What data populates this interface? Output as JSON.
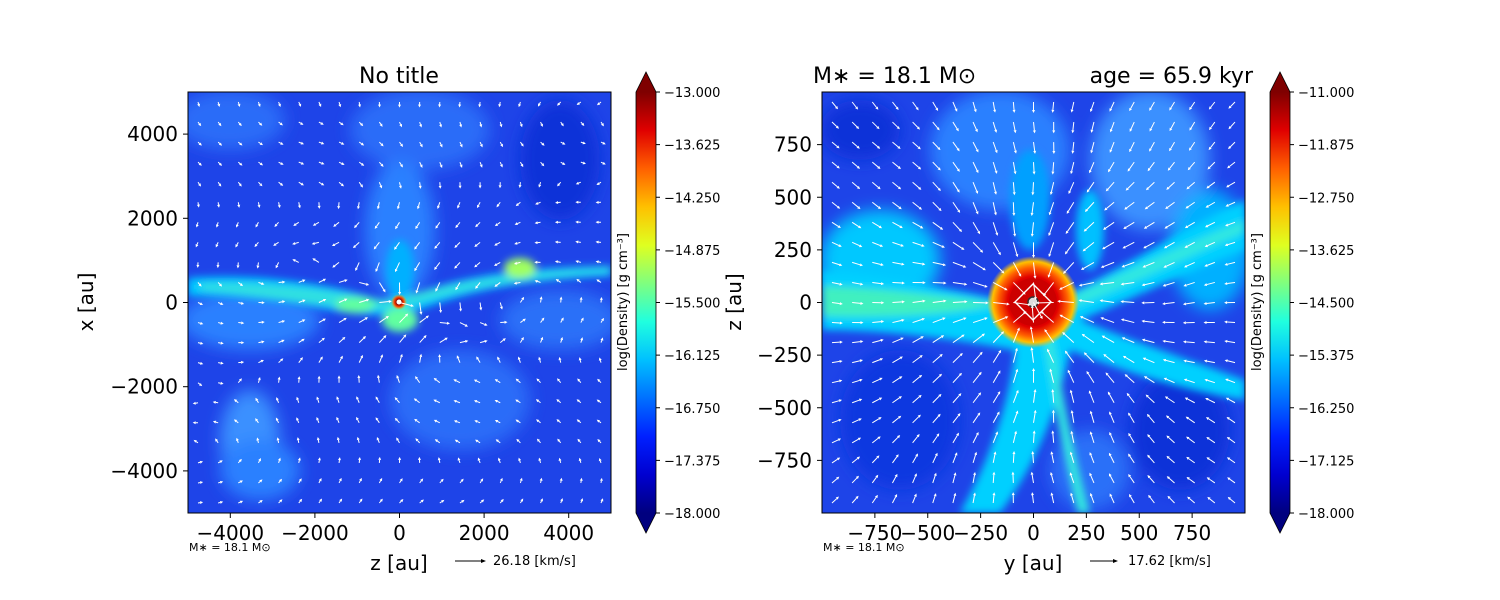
{
  "colors": {
    "jet_stops": [
      "#00007f",
      "#0000d0",
      "#0020ff",
      "#0070ff",
      "#00c0ff",
      "#20ffdf",
      "#7fff7f",
      "#dfff20",
      "#ffc000",
      "#ff6000",
      "#e00000",
      "#7f0000"
    ],
    "density_bg": "#1e44e8",
    "arrow": "#ffffff"
  },
  "chart_data": [
    {
      "type": "heatmap",
      "title": "No title",
      "xlabel": "z [au]",
      "ylabel": "x [au]",
      "xlim": [
        -5000,
        5000
      ],
      "ylim": [
        -5000,
        5000
      ],
      "x_ticks": [
        -4000,
        -2000,
        0,
        2000,
        4000
      ],
      "x_tick_labels": [
        "−4000",
        "−2000",
        "0",
        "2000",
        "4000"
      ],
      "y_ticks": [
        4000,
        2000,
        0,
        -2000,
        -4000
      ],
      "y_tick_labels": [
        "4000",
        "2000",
        "0",
        "−2000",
        "−4000"
      ],
      "mass_label": "M∗ = 18.1 M⊙",
      "quiver_key": "26.18 [km/s]",
      "colorbar": {
        "label": "log(Density) [g cm⁻³]",
        "range": [
          -18.0,
          -13.0
        ],
        "ticks": [
          -13.0,
          -13.625,
          -14.25,
          -14.875,
          -15.5,
          -16.125,
          -16.75,
          -17.375,
          -18.0
        ],
        "tick_labels": [
          "−13.000",
          "−13.625",
          "−14.250",
          "−14.875",
          "−15.500",
          "−16.125",
          "−16.750",
          "−17.375",
          "−18.000"
        ]
      }
    },
    {
      "type": "heatmap",
      "title_left": "M∗ = 18.1 M⊙",
      "title_right": "age = 65.9 kyr",
      "xlabel": "y [au]",
      "ylabel": "z [au]",
      "xlim": [
        -1000,
        1000
      ],
      "ylim": [
        -1000,
        1000
      ],
      "x_ticks": [
        -750,
        -500,
        -250,
        0,
        250,
        500,
        750
      ],
      "x_tick_labels": [
        "−750",
        "−500",
        "−250",
        "0",
        "250",
        "500",
        "750"
      ],
      "y_ticks": [
        750,
        500,
        250,
        0,
        -250,
        -500,
        -750
      ],
      "y_tick_labels": [
        "750",
        "500",
        "250",
        "0",
        "−250",
        "−500",
        "−750"
      ],
      "mass_label": "M∗ = 18.1 M⊙",
      "quiver_key": "17.62 [km/s]",
      "colorbar": {
        "label": "log(Density) [g cm⁻³]",
        "range": [
          -18.0,
          -11.0
        ],
        "ticks": [
          -11.0,
          -11.875,
          -12.75,
          -13.625,
          -14.5,
          -15.375,
          -16.25,
          -17.125,
          -18.0
        ],
        "tick_labels": [
          "−11.000",
          "−11.875",
          "−12.750",
          "−13.625",
          "−14.500",
          "−15.375",
          "−16.250",
          "−17.125",
          "−18.000"
        ]
      }
    }
  ]
}
